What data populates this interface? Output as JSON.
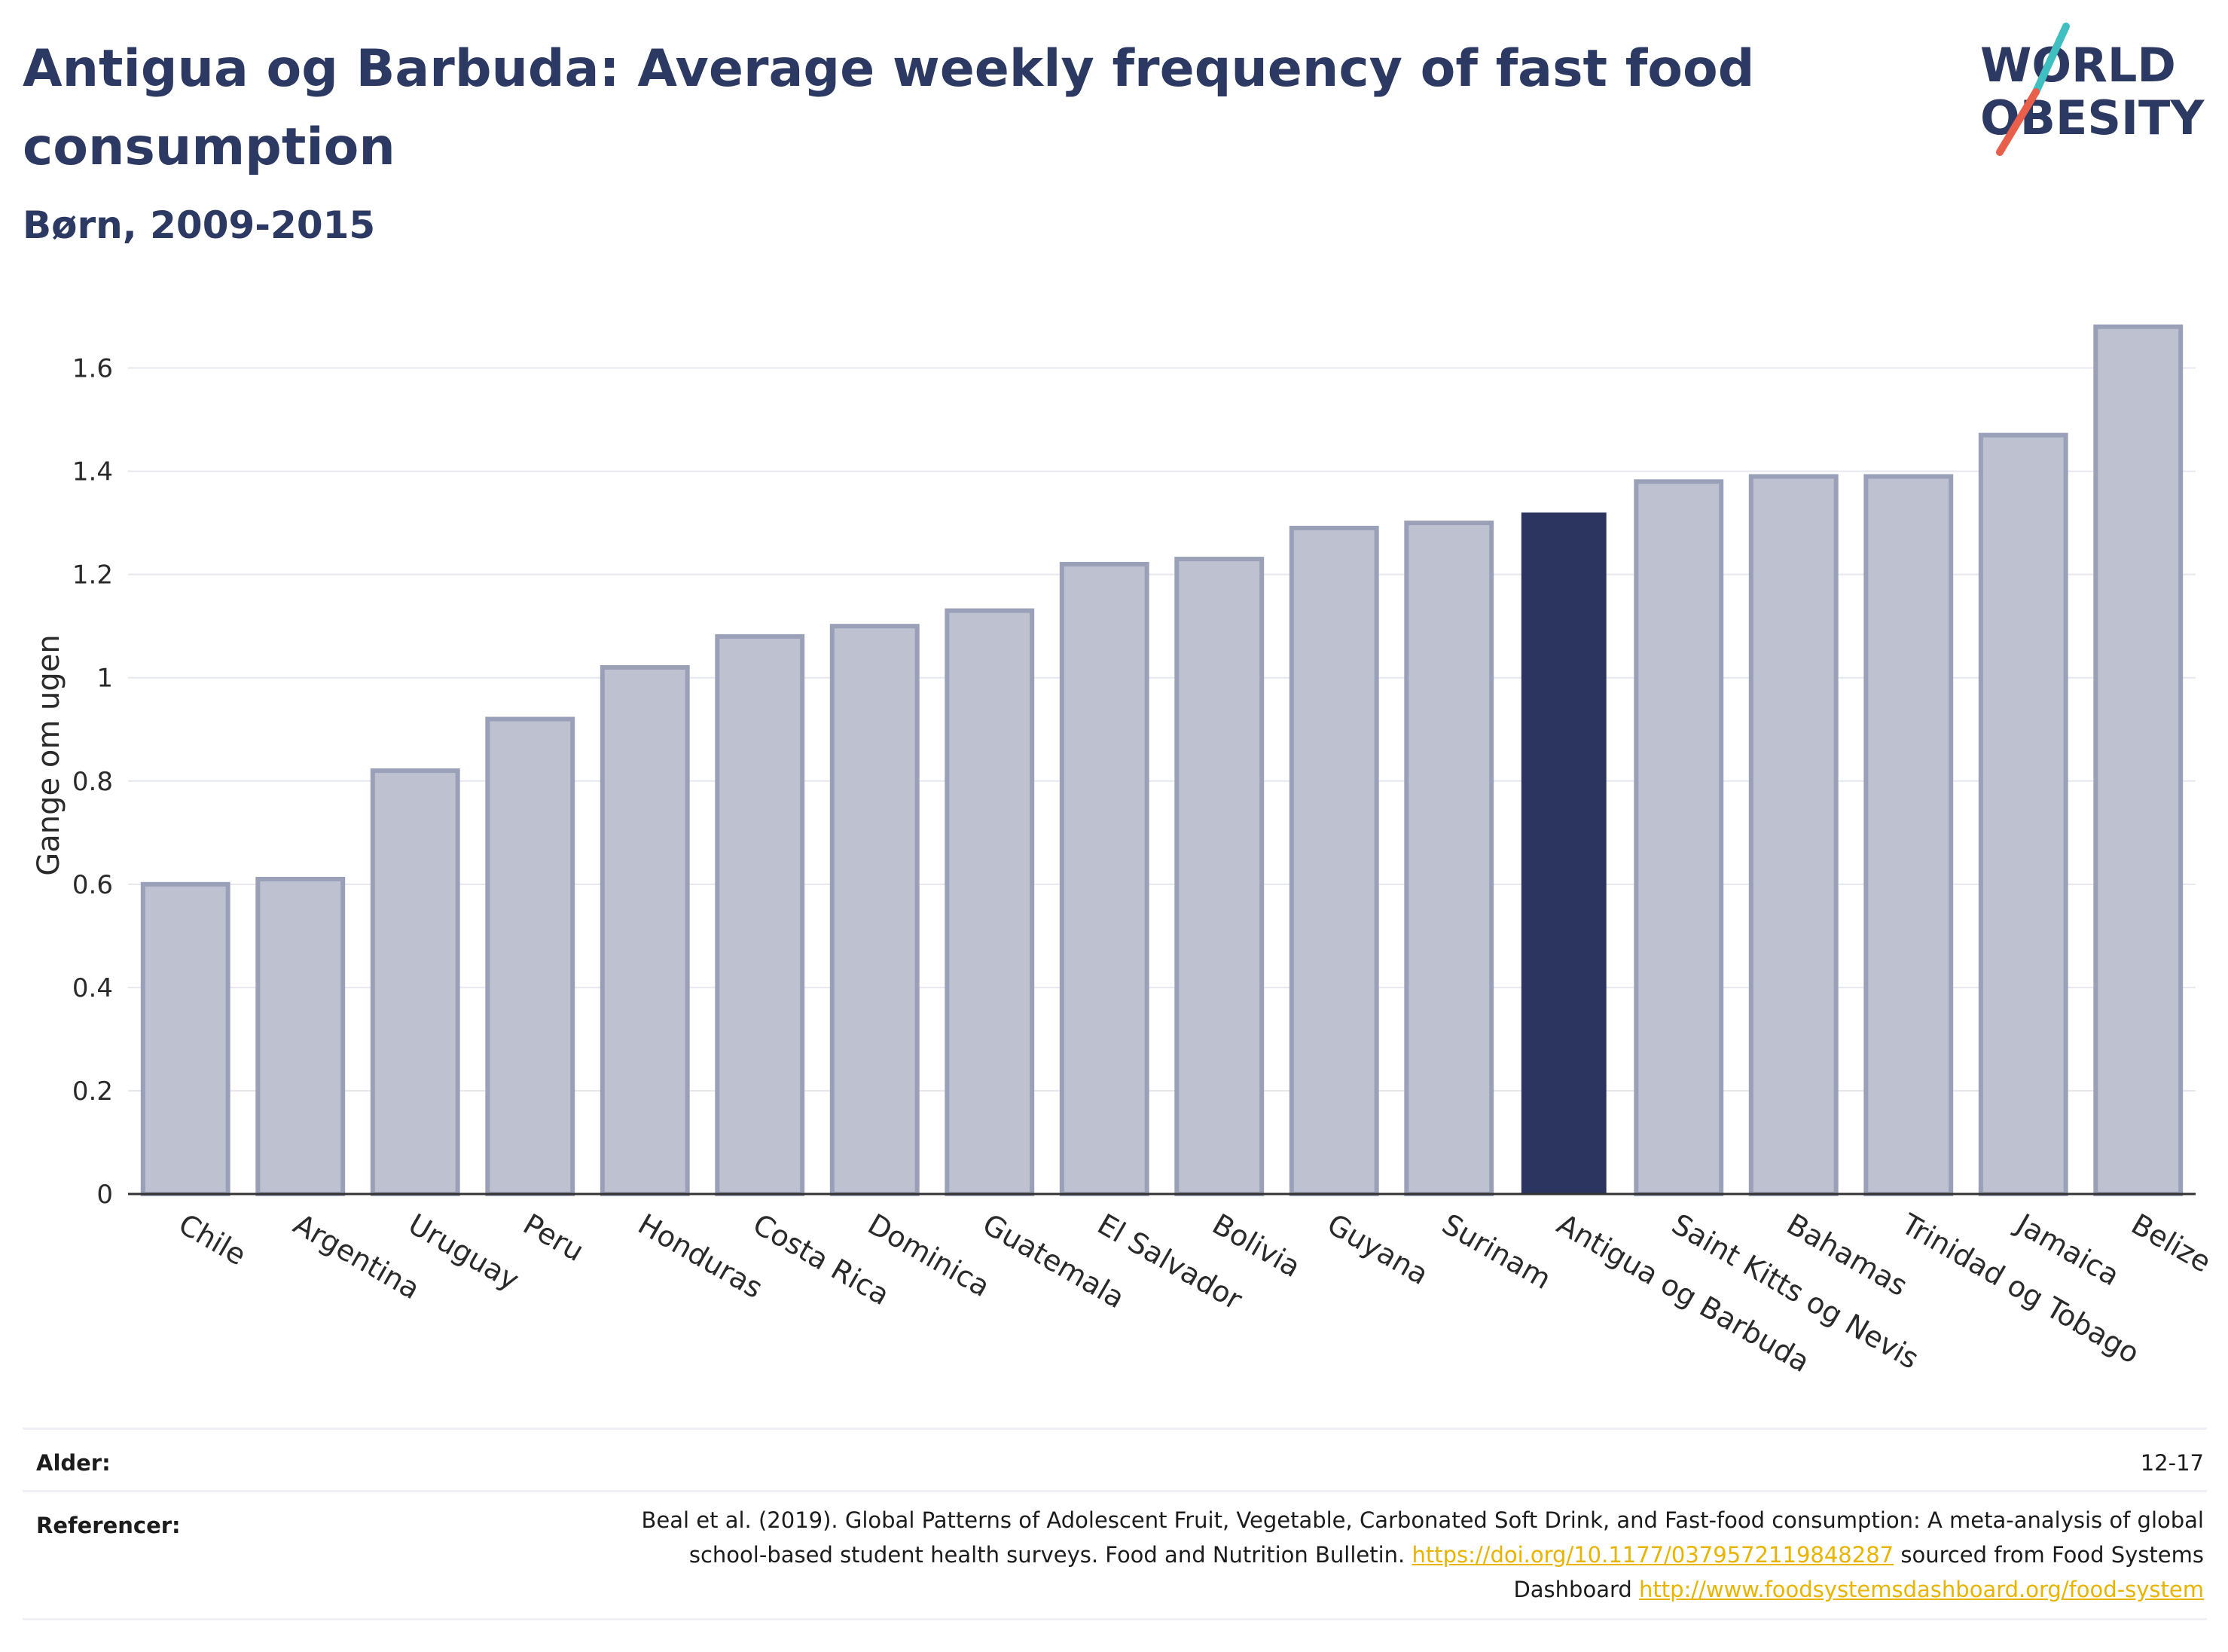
{
  "header": {
    "title": "Antigua og Barbuda: Average weekly frequency of fast food consumption",
    "subtitle": "Børn, 2009-2015"
  },
  "logo": {
    "line1": "WORLD",
    "line2": "OBESITY"
  },
  "colors": {
    "bar": "#bec1cf",
    "bar_border": "#9aa0b7",
    "highlight": "#2b3560",
    "grid": "#e6e8ef",
    "axis": "#333333",
    "link": "#e8b400"
  },
  "chart_data": {
    "type": "bar",
    "ylabel": "Gange om ugen",
    "xlabel": "",
    "ylim": [
      0,
      1.7
    ],
    "yticks": [
      0,
      0.2,
      0.4,
      0.6,
      0.8,
      1,
      1.2,
      1.4,
      1.6
    ],
    "ytick_labels": [
      "0",
      "0.2",
      "0.4",
      "0.6",
      "0.8",
      "1",
      "1.2",
      "1.4",
      "1.6"
    ],
    "grid": true,
    "highlight": "Antigua og Barbuda",
    "categories": [
      "Chile",
      "Argentina",
      "Uruguay",
      "Peru",
      "Honduras",
      "Costa Rica",
      "Dominica",
      "Guatemala",
      "El Salvador",
      "Bolivia",
      "Guyana",
      "Surinam",
      "Antigua og Barbuda",
      "Saint Kitts og Nevis",
      "Bahamas",
      "Trinidad og Tobago",
      "Jamaica",
      "Belize"
    ],
    "values": [
      0.6,
      0.61,
      0.82,
      0.92,
      1.02,
      1.08,
      1.1,
      1.13,
      1.22,
      1.23,
      1.29,
      1.3,
      1.32,
      1.38,
      1.39,
      1.39,
      1.47,
      1.68
    ]
  },
  "footer": {
    "age_label": "Alder:",
    "age_value": "12-17",
    "refs_label": "Referencer:",
    "refs_text1": "Beal et al. (2019). Global Patterns of Adolescent Fruit, Vegetable, Carbonated Soft Drink, and Fast-food consumption: A meta-analysis of global school-based student health surveys. Food and Nutrition Bulletin. ",
    "refs_link1": "https://doi.org/10.1177/0379572119848287",
    "refs_text2": " sourced from Food Systems Dashboard ",
    "refs_link2": "http://www.foodsystemsdashboard.org/food-system"
  }
}
